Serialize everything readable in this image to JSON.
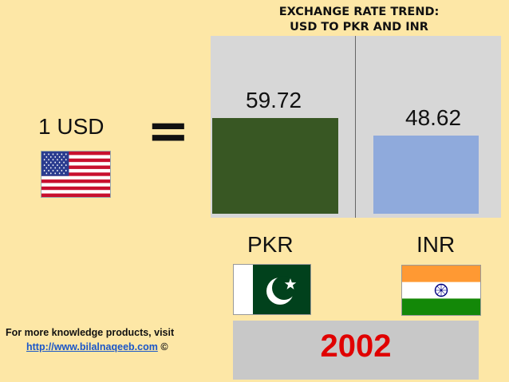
{
  "title": {
    "line1": "EXCHANGE RATE TREND:",
    "line2": "USD TO PKR AND INR"
  },
  "left": {
    "usd_label": "1 USD",
    "equals": "="
  },
  "chart_data": {
    "type": "bar",
    "title": "EXCHANGE RATE TREND: USD TO PKR AND INR",
    "categories": [
      "PKR",
      "INR"
    ],
    "values": [
      59.72,
      48.62
    ],
    "colors": [
      "#385723",
      "#8faadc"
    ],
    "value_labels": [
      "59.72",
      "48.62"
    ],
    "plot_background": "#d7d7d7"
  },
  "flags": {
    "us": "us-flag-icon",
    "pk": "pakistan-flag-icon",
    "in": "india-flag-icon"
  },
  "year": "2002",
  "footer": {
    "line1": "For more knowledge products, visit",
    "link": "http://www.bilalnaqeeb.com",
    "copyright": "©"
  },
  "colors": {
    "background": "#fde7a6",
    "year_text": "#e00000",
    "link": "#1a56c8"
  }
}
